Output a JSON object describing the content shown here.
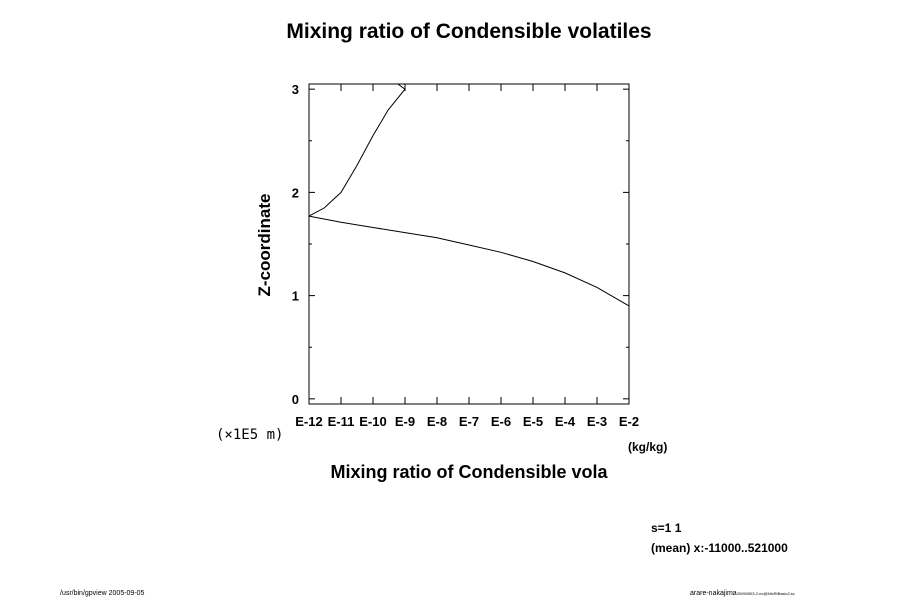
{
  "chart_data": {
    "type": "line",
    "title": "Mixing ratio of Condensible volatiles",
    "xlabel": "Mixing ratio of Condensible vola",
    "ylabel": "Z-coordinate",
    "x_units": "(kg/kg)",
    "y_units": "(×1E5 m)",
    "x_scale": "log",
    "xlim": [
      1e-12,
      0.01
    ],
    "ylim": [
      -0.05,
      3.05
    ],
    "x_tick_labels": [
      "E-12",
      "E-11",
      "E-10",
      "E-9",
      "E-8",
      "E-7",
      "E-6",
      "E-5",
      "E-4",
      "E-3",
      "E-2"
    ],
    "y_tick_labels": [
      "0",
      "1",
      "2",
      "3"
    ],
    "series": [
      {
        "x": [
          1e-12,
          3e-12,
          1e-11,
          3e-11,
          1e-10,
          3e-10,
          1e-09,
          6e-10
        ],
        "y": [
          1.77,
          1.85,
          2.0,
          2.25,
          2.55,
          2.8,
          3.0,
          3.05
        ]
      },
      {
        "x": [
          1e-12,
          1e-11,
          1e-10,
          1e-09,
          1e-08,
          1e-07,
          1e-06,
          1e-05,
          0.0001,
          0.001,
          0.01
        ],
        "y": [
          1.77,
          1.71,
          1.66,
          1.61,
          1.56,
          1.49,
          1.42,
          1.33,
          1.22,
          1.08,
          0.9
        ]
      }
    ],
    "grid": false
  },
  "annotations": {
    "stats_1": "s=1 1",
    "stats_2": "(mean) x:-11000..521000",
    "footer_left": "/usr/bin/gpview 2005-09-05",
    "footer_right_main": "arare-nakajima",
    "footer_right_small": "20050903-2.nc@MixRtBasic2,sc"
  }
}
